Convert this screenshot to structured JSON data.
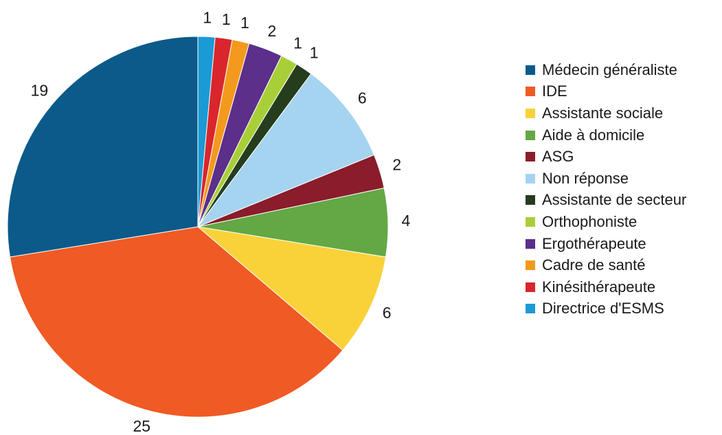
{
  "chart_data": {
    "type": "pie",
    "title": "",
    "slices": [
      {
        "label": "Directrice d'ESMS",
        "value": 1,
        "color": "#1a9bd6"
      },
      {
        "label": "Kinésithérapeute",
        "value": 1,
        "color": "#d9262c"
      },
      {
        "label": "Cadre de santé",
        "value": 1,
        "color": "#f39a1e"
      },
      {
        "label": "Ergothérapeute",
        "value": 2,
        "color": "#5b2f8a"
      },
      {
        "label": "Orthophoniste",
        "value": 1,
        "color": "#a9cf38"
      },
      {
        "label": "Assistante de secteur",
        "value": 1,
        "color": "#263d1d"
      },
      {
        "label": "Non réponse",
        "value": 6,
        "color": "#a5d4f0"
      },
      {
        "label": "ASG",
        "value": 2,
        "color": "#8a1c2b"
      },
      {
        "label": "Aide à domicile",
        "value": 4,
        "color": "#63a844"
      },
      {
        "label": "Assistante sociale",
        "value": 6,
        "color": "#f9d23a"
      },
      {
        "label": "IDE",
        "value": 25,
        "color": "#f05a24"
      },
      {
        "label": "Médecin généraliste",
        "value": 19,
        "color": "#0b5a8a"
      }
    ],
    "data_labels": [
      "1",
      "1",
      "1",
      "2",
      "1",
      "1",
      "6",
      "2",
      "4",
      "6",
      "25",
      "19"
    ],
    "legend": {
      "placement": "right",
      "entries": [
        {
          "label": "Médecin généraliste",
          "color": "#0b5a8a"
        },
        {
          "label": "IDE",
          "color": "#f05a24"
        },
        {
          "label": "Assistante sociale",
          "color": "#f9d23a"
        },
        {
          "label": "Aide à domicile",
          "color": "#63a844"
        },
        {
          "label": "ASG",
          "color": "#8a1c2b"
        },
        {
          "label": "Non réponse",
          "color": "#a5d4f0"
        },
        {
          "label": "Assistante de secteur",
          "color": "#263d1d"
        },
        {
          "label": "Orthophoniste",
          "color": "#a9cf38"
        },
        {
          "label": "Ergothérapeute",
          "color": "#5b2f8a"
        },
        {
          "label": "Cadre de santé",
          "color": "#f39a1e"
        },
        {
          "label": "Kinésithérapeute",
          "color": "#d9262c"
        },
        {
          "label": "Directrice d'ESMS",
          "color": "#1a9bd6"
        }
      ]
    }
  }
}
